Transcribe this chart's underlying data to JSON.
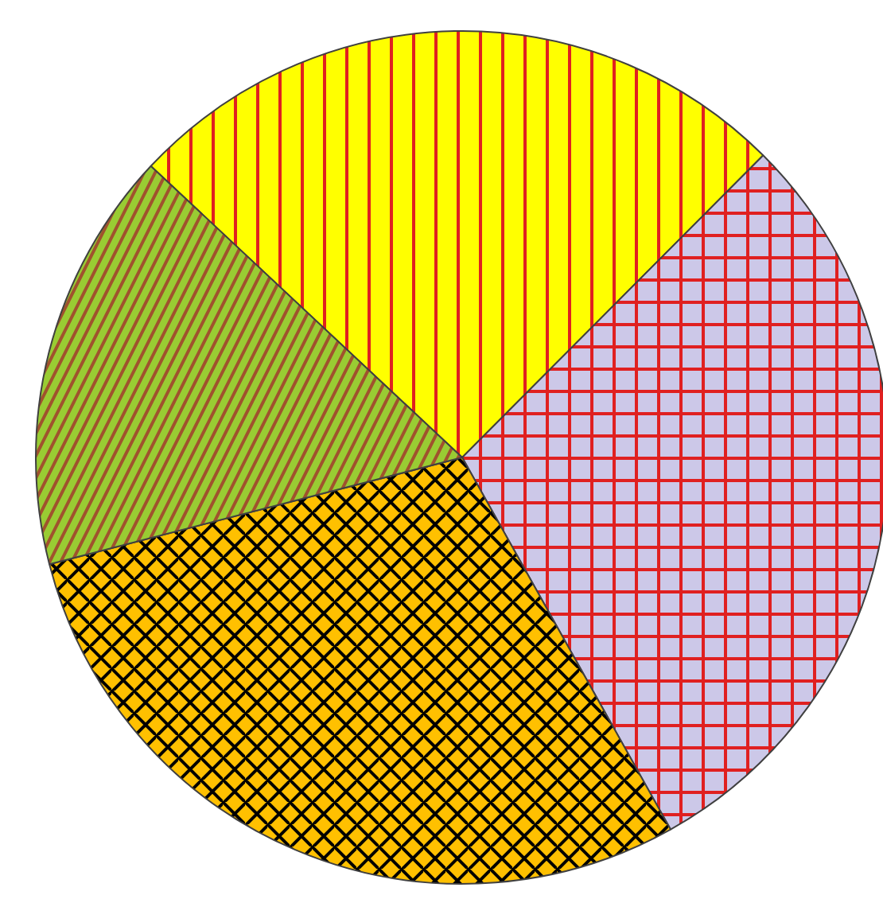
{
  "chart_data": {
    "type": "pie",
    "categories": [
      null,
      null,
      null,
      null
    ],
    "values": [
      25.5,
      29.4,
      29.1,
      16.0
    ],
    "colors": [
      "#ffff00",
      "#ccc8e8",
      "#ffc000",
      "#99cc33"
    ]
  }
}
